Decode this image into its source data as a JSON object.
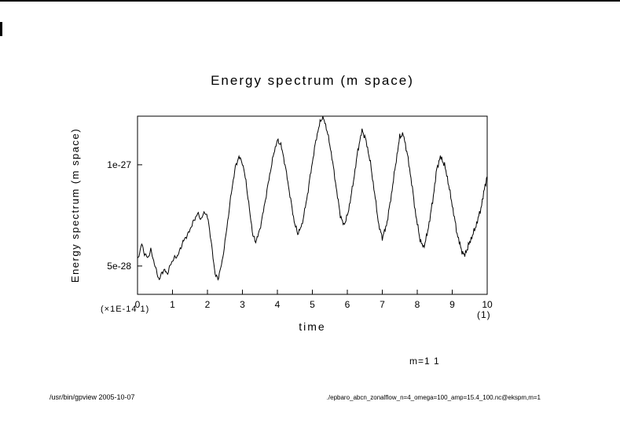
{
  "chart_data": {
    "type": "line",
    "title": "Energy spectrum (m space)",
    "xlabel": "time",
    "ylabel": "Energy spectrum (m space)",
    "x_axis_unit_left": "(×1E-14 1)",
    "x_axis_unit_right": "(1)",
    "legend": "m=1 1",
    "grid": false,
    "legend_position": "below-right",
    "xlim": [
      0,
      10
    ],
    "ylim": [
      3.6e-28,
      1.24e-27
    ],
    "y_scale": 1e-28,
    "x_ticks": [
      {
        "value": 0,
        "label": "0"
      },
      {
        "value": 1,
        "label": "1"
      },
      {
        "value": 2,
        "label": "2"
      },
      {
        "value": 3,
        "label": "3"
      },
      {
        "value": 4,
        "label": "4"
      },
      {
        "value": 5,
        "label": "5"
      },
      {
        "value": 6,
        "label": "6"
      },
      {
        "value": 7,
        "label": "7"
      },
      {
        "value": 8,
        "label": "8"
      },
      {
        "value": 9,
        "label": "9"
      },
      {
        "value": 10,
        "label": "10"
      }
    ],
    "y_ticks": [
      {
        "value": 5e-28,
        "label": "5e-28"
      },
      {
        "value": 1e-27,
        "label": "1e-27"
      }
    ],
    "series": [
      {
        "name": "m=1",
        "points": [
          [
            0,
            5.3
          ],
          [
            0.08,
            5.8
          ],
          [
            0.12,
            6.1
          ],
          [
            0.2,
            5.6
          ],
          [
            0.3,
            5.4
          ],
          [
            0.38,
            5.8
          ],
          [
            0.5,
            5.0
          ],
          [
            0.62,
            4.3
          ],
          [
            0.7,
            4.7
          ],
          [
            0.78,
            4.8
          ],
          [
            0.85,
            4.6
          ],
          [
            0.95,
            5.1
          ],
          [
            1.05,
            5.4
          ],
          [
            1.15,
            5.5
          ],
          [
            1.3,
            6.2
          ],
          [
            1.45,
            6.6
          ],
          [
            1.6,
            7.2
          ],
          [
            1.72,
            7.6
          ],
          [
            1.82,
            7.3
          ],
          [
            1.92,
            7.7
          ],
          [
            2.02,
            7.3
          ],
          [
            2.12,
            6.0
          ],
          [
            2.22,
            4.6
          ],
          [
            2.3,
            4.35
          ],
          [
            2.42,
            5.2
          ],
          [
            2.55,
            6.8
          ],
          [
            2.68,
            8.6
          ],
          [
            2.8,
            9.9
          ],
          [
            2.9,
            10.4
          ],
          [
            3.0,
            10.1
          ],
          [
            3.1,
            9.2
          ],
          [
            3.2,
            7.8
          ],
          [
            3.3,
            6.5
          ],
          [
            3.38,
            6.2
          ],
          [
            3.5,
            6.8
          ],
          [
            3.62,
            7.9
          ],
          [
            3.76,
            9.3
          ],
          [
            3.9,
            10.6
          ],
          [
            4.0,
            11.2
          ],
          [
            4.1,
            11.0
          ],
          [
            4.22,
            10.0
          ],
          [
            4.35,
            8.6
          ],
          [
            4.48,
            7.2
          ],
          [
            4.58,
            6.6
          ],
          [
            4.7,
            7.0
          ],
          [
            4.84,
            8.3
          ],
          [
            4.98,
            9.9
          ],
          [
            5.1,
            11.2
          ],
          [
            5.22,
            12.1
          ],
          [
            5.3,
            12.4
          ],
          [
            5.42,
            11.7
          ],
          [
            5.55,
            10.5
          ],
          [
            5.68,
            8.9
          ],
          [
            5.8,
            7.5
          ],
          [
            5.9,
            7.0
          ],
          [
            6.02,
            7.6
          ],
          [
            6.16,
            9.0
          ],
          [
            6.3,
            10.7
          ],
          [
            6.42,
            11.7
          ],
          [
            6.52,
            11.3
          ],
          [
            6.65,
            10.2
          ],
          [
            6.78,
            8.6
          ],
          [
            6.9,
            7.0
          ],
          [
            7.0,
            6.4
          ],
          [
            7.12,
            7.0
          ],
          [
            7.25,
            8.4
          ],
          [
            7.38,
            10.0
          ],
          [
            7.5,
            11.4
          ],
          [
            7.6,
            11.5
          ],
          [
            7.72,
            10.5
          ],
          [
            7.84,
            9.1
          ],
          [
            7.96,
            7.5
          ],
          [
            8.08,
            6.3
          ],
          [
            8.18,
            5.9
          ],
          [
            8.3,
            6.7
          ],
          [
            8.44,
            8.2
          ],
          [
            8.56,
            9.8
          ],
          [
            8.66,
            10.4
          ],
          [
            8.78,
            10.0
          ],
          [
            8.9,
            9.0
          ],
          [
            9.02,
            7.8
          ],
          [
            9.14,
            6.6
          ],
          [
            9.26,
            5.8
          ],
          [
            9.35,
            5.5
          ],
          [
            9.46,
            6.0
          ],
          [
            9.6,
            6.6
          ],
          [
            9.72,
            7.2
          ],
          [
            9.84,
            8.0
          ],
          [
            9.94,
            9.0
          ],
          [
            10,
            9.4
          ]
        ]
      }
    ],
    "noise": {
      "amplitude": 0.2,
      "sample_dt": 0.02
    }
  },
  "footer": {
    "left": "/usr/bin/gpview  2005-10-07",
    "right": "./epbaro_abcn_zonalflow_n=4_omega=100_amp=15.4_100.nc@ekspm,m=1"
  }
}
